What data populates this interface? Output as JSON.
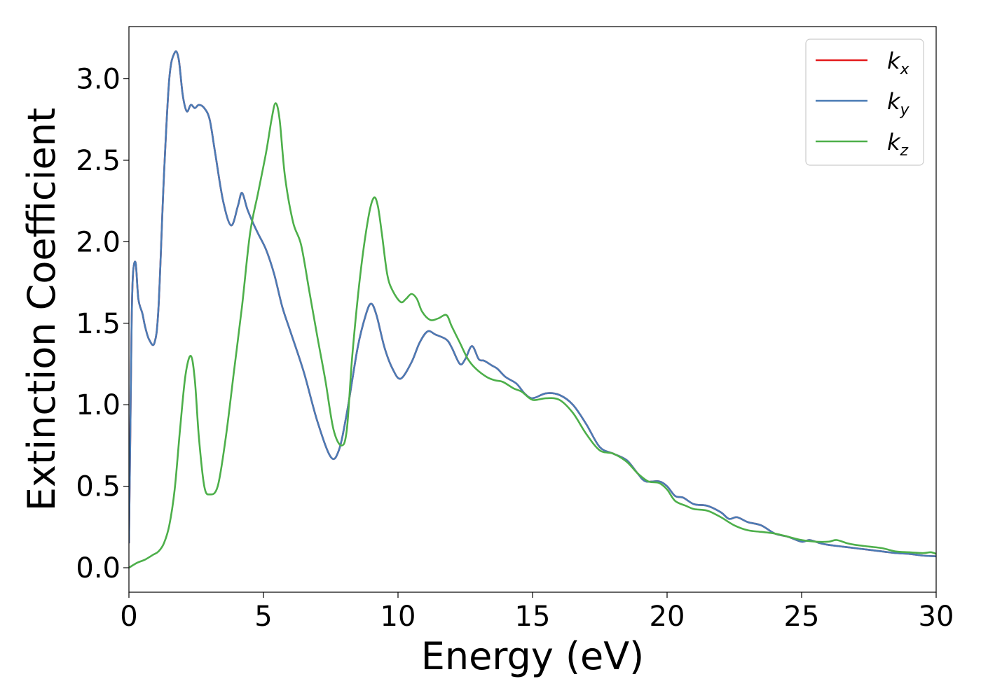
{
  "chart_data": {
    "type": "line",
    "xlabel": "Energy (eV)",
    "ylabel": "Extinction Coefficient",
    "xlim": [
      0,
      30
    ],
    "ylim": [
      -0.15,
      3.32
    ],
    "xticks": [
      "0",
      "5",
      "10",
      "15",
      "20",
      "25",
      "30"
    ],
    "yticks": [
      "0.0",
      "0.5",
      "1.0",
      "1.5",
      "2.0",
      "2.5",
      "3.0"
    ],
    "grid": false,
    "legend_position": "top-right",
    "series": [
      {
        "name": "k",
        "subscript": "x",
        "color": "#e41a1c",
        "x": [
          0,
          0.05,
          0.1,
          0.15,
          0.25,
          0.35,
          0.5,
          0.6,
          0.75,
          0.95,
          1.1,
          1.3,
          1.5,
          1.7,
          1.85,
          2.0,
          2.15,
          2.3,
          2.45,
          2.6,
          2.8,
          3.0,
          3.2,
          3.5,
          3.8,
          4.05,
          4.2,
          4.4,
          4.6,
          4.8,
          5.1,
          5.4,
          5.7,
          6.0,
          6.5,
          7.0,
          7.5,
          7.8,
          8.1,
          8.5,
          8.8,
          9.0,
          9.2,
          9.5,
          9.8,
          10.1,
          10.5,
          10.8,
          11.1,
          11.4,
          11.8,
          12.0,
          12.3,
          12.5,
          12.75,
          13.0,
          13.2,
          13.5,
          13.7,
          14.0,
          14.4,
          14.7,
          15.0,
          15.5,
          16.0,
          16.5,
          17.0,
          17.5,
          18.0,
          18.5,
          18.9,
          19.2,
          19.7,
          20.0,
          20.3,
          20.6,
          21.0,
          21.5,
          22.0,
          22.3,
          22.6,
          23.0,
          23.5,
          24.0,
          24.5,
          25.0,
          25.3,
          25.7,
          26.0,
          26.5,
          27.0,
          27.5,
          28.0,
          28.5,
          29.0,
          29.5,
          30.0
        ],
        "values": [
          0.15,
          0.8,
          1.5,
          1.8,
          1.87,
          1.65,
          1.56,
          1.48,
          1.4,
          1.38,
          1.6,
          2.4,
          3.0,
          3.16,
          3.12,
          2.9,
          2.8,
          2.84,
          2.82,
          2.84,
          2.82,
          2.75,
          2.55,
          2.25,
          2.1,
          2.22,
          2.3,
          2.2,
          2.12,
          2.05,
          1.95,
          1.8,
          1.6,
          1.45,
          1.2,
          0.9,
          0.68,
          0.72,
          0.95,
          1.35,
          1.55,
          1.62,
          1.55,
          1.35,
          1.22,
          1.16,
          1.26,
          1.38,
          1.45,
          1.43,
          1.4,
          1.35,
          1.25,
          1.28,
          1.36,
          1.28,
          1.27,
          1.24,
          1.22,
          1.17,
          1.13,
          1.07,
          1.04,
          1.07,
          1.06,
          1.0,
          0.88,
          0.74,
          0.7,
          0.66,
          0.58,
          0.53,
          0.53,
          0.5,
          0.44,
          0.43,
          0.39,
          0.38,
          0.34,
          0.3,
          0.31,
          0.28,
          0.26,
          0.21,
          0.19,
          0.16,
          0.17,
          0.15,
          0.14,
          0.13,
          0.12,
          0.11,
          0.1,
          0.09,
          0.085,
          0.075,
          0.07
        ]
      },
      {
        "name": "k",
        "subscript": "y",
        "color": "#4a7bb5",
        "x": [
          0,
          0.05,
          0.1,
          0.15,
          0.25,
          0.35,
          0.5,
          0.6,
          0.75,
          0.95,
          1.1,
          1.3,
          1.5,
          1.7,
          1.85,
          2.0,
          2.15,
          2.3,
          2.45,
          2.6,
          2.8,
          3.0,
          3.2,
          3.5,
          3.8,
          4.05,
          4.2,
          4.4,
          4.6,
          4.8,
          5.1,
          5.4,
          5.7,
          6.0,
          6.5,
          7.0,
          7.5,
          7.8,
          8.1,
          8.5,
          8.8,
          9.0,
          9.2,
          9.5,
          9.8,
          10.1,
          10.5,
          10.8,
          11.1,
          11.4,
          11.8,
          12.0,
          12.3,
          12.5,
          12.75,
          13.0,
          13.2,
          13.5,
          13.7,
          14.0,
          14.4,
          14.7,
          15.0,
          15.5,
          16.0,
          16.5,
          17.0,
          17.5,
          18.0,
          18.5,
          18.9,
          19.2,
          19.7,
          20.0,
          20.3,
          20.6,
          21.0,
          21.5,
          22.0,
          22.3,
          22.6,
          23.0,
          23.5,
          24.0,
          24.5,
          25.0,
          25.3,
          25.7,
          26.0,
          26.5,
          27.0,
          27.5,
          28.0,
          28.5,
          29.0,
          29.5,
          30.0
        ],
        "values": [
          0.15,
          0.8,
          1.5,
          1.8,
          1.87,
          1.65,
          1.56,
          1.48,
          1.4,
          1.38,
          1.6,
          2.4,
          3.0,
          3.16,
          3.12,
          2.9,
          2.8,
          2.84,
          2.82,
          2.84,
          2.82,
          2.75,
          2.55,
          2.25,
          2.1,
          2.22,
          2.3,
          2.2,
          2.12,
          2.05,
          1.95,
          1.8,
          1.6,
          1.45,
          1.2,
          0.9,
          0.68,
          0.72,
          0.95,
          1.35,
          1.55,
          1.62,
          1.55,
          1.35,
          1.22,
          1.16,
          1.26,
          1.38,
          1.45,
          1.43,
          1.4,
          1.35,
          1.25,
          1.28,
          1.36,
          1.28,
          1.27,
          1.24,
          1.22,
          1.17,
          1.13,
          1.07,
          1.04,
          1.07,
          1.06,
          1.0,
          0.88,
          0.74,
          0.7,
          0.66,
          0.58,
          0.53,
          0.53,
          0.5,
          0.44,
          0.43,
          0.39,
          0.38,
          0.34,
          0.3,
          0.31,
          0.28,
          0.26,
          0.21,
          0.19,
          0.16,
          0.17,
          0.15,
          0.14,
          0.13,
          0.12,
          0.11,
          0.1,
          0.09,
          0.085,
          0.075,
          0.07
        ]
      },
      {
        "name": "k",
        "subscript": "z",
        "color": "#4daf4a",
        "x": [
          0,
          0.3,
          0.6,
          0.9,
          1.1,
          1.3,
          1.5,
          1.7,
          1.9,
          2.1,
          2.3,
          2.45,
          2.6,
          2.8,
          3.0,
          3.3,
          3.6,
          3.9,
          4.2,
          4.5,
          4.8,
          5.1,
          5.3,
          5.45,
          5.6,
          5.8,
          6.1,
          6.4,
          6.7,
          7.0,
          7.3,
          7.6,
          7.9,
          8.1,
          8.3,
          8.6,
          8.9,
          9.1,
          9.25,
          9.4,
          9.6,
          9.8,
          10.1,
          10.3,
          10.5,
          10.7,
          10.9,
          11.2,
          11.5,
          11.8,
          12.0,
          12.3,
          12.6,
          12.9,
          13.3,
          13.6,
          13.9,
          14.3,
          14.6,
          15.0,
          15.5,
          16.0,
          16.5,
          17.0,
          17.5,
          18.0,
          18.5,
          18.9,
          19.3,
          19.7,
          20.0,
          20.3,
          20.7,
          21.0,
          21.5,
          22.0,
          22.5,
          23.0,
          23.5,
          24.0,
          24.5,
          25.0,
          25.5,
          26.0,
          26.3,
          26.7,
          27.0,
          27.5,
          28.0,
          28.5,
          29.0,
          29.5,
          29.8,
          30.0
        ],
        "values": [
          0.0,
          0.03,
          0.05,
          0.08,
          0.1,
          0.15,
          0.26,
          0.48,
          0.85,
          1.18,
          1.3,
          1.15,
          0.8,
          0.5,
          0.45,
          0.5,
          0.8,
          1.2,
          1.6,
          2.05,
          2.3,
          2.55,
          2.75,
          2.85,
          2.75,
          2.4,
          2.12,
          1.98,
          1.7,
          1.42,
          1.15,
          0.85,
          0.75,
          0.85,
          1.3,
          1.8,
          2.15,
          2.27,
          2.22,
          2.05,
          1.8,
          1.7,
          1.63,
          1.65,
          1.68,
          1.65,
          1.57,
          1.52,
          1.53,
          1.55,
          1.48,
          1.38,
          1.28,
          1.22,
          1.17,
          1.15,
          1.14,
          1.1,
          1.08,
          1.03,
          1.04,
          1.03,
          0.95,
          0.82,
          0.72,
          0.7,
          0.65,
          0.58,
          0.53,
          0.52,
          0.48,
          0.41,
          0.38,
          0.36,
          0.35,
          0.31,
          0.26,
          0.23,
          0.22,
          0.21,
          0.19,
          0.17,
          0.16,
          0.16,
          0.17,
          0.15,
          0.14,
          0.13,
          0.12,
          0.1,
          0.095,
          0.09,
          0.095,
          0.085
        ]
      }
    ]
  }
}
